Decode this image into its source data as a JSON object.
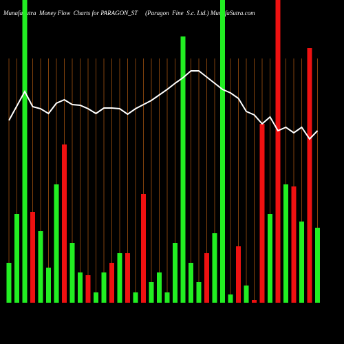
{
  "chart_data": {
    "type": "bar",
    "title": "MunafaSutra  Money Flow  Charts for PARAGON_ST     (Paragon  Fine  S.c. Ltd.) MunafaSutra.com",
    "categories": [
      null,
      null,
      null,
      null,
      null,
      null,
      null,
      null,
      null,
      null,
      null,
      null,
      null,
      null,
      null,
      null,
      null,
      null,
      null,
      null,
      null,
      null,
      null,
      null,
      null,
      null,
      null,
      null,
      null,
      null,
      null,
      null,
      null,
      null,
      null,
      null,
      null,
      null,
      null,
      null
    ],
    "values": [
      58,
      129,
      440,
      132,
      104,
      51,
      172,
      230,
      87,
      44,
      40,
      15,
      44,
      58,
      72,
      72,
      15,
      158,
      30,
      44,
      15,
      87,
      387,
      58,
      30,
      72,
      101,
      440,
      12,
      82,
      25,
      4,
      260,
      129,
      440,
      172,
      169,
      118,
      370,
      109
    ],
    "colors": [
      "#22ee22",
      "#22ee22",
      "#22ee22",
      "#ee1111",
      "#22ee22",
      "#22ee22",
      "#22ee22",
      "#ee1111",
      "#22ee22",
      "#22ee22",
      "#ee1111",
      "#22ee22",
      "#22ee22",
      "#ee1111",
      "#22ee22",
      "#ee1111",
      "#22ee22",
      "#ee1111",
      "#22ee22",
      "#22ee22",
      "#22ee22",
      "#22ee22",
      "#22ee22",
      "#22ee22",
      "#22ee22",
      "#ee1111",
      "#22ee22",
      "#22ee22",
      "#22ee22",
      "#ee1111",
      "#22ee22",
      "#ee1111",
      "#ee1111",
      "#22ee22",
      "#ee1111",
      "#22ee22",
      "#ee1111",
      "#22ee22",
      "#ee1111",
      "#22ee22"
    ],
    "line": {
      "color": "#ffffff",
      "values": [
        265,
        286,
        307,
        285,
        282,
        275,
        290,
        295,
        288,
        287,
        282,
        275,
        283,
        283,
        282,
        274,
        282,
        288,
        294,
        302,
        310,
        319,
        327,
        337,
        337,
        328,
        319,
        310,
        305,
        297,
        278,
        273,
        260,
        270,
        250,
        255,
        247,
        255,
        238,
        250
      ]
    },
    "ylim": [
      0,
      440
    ]
  }
}
